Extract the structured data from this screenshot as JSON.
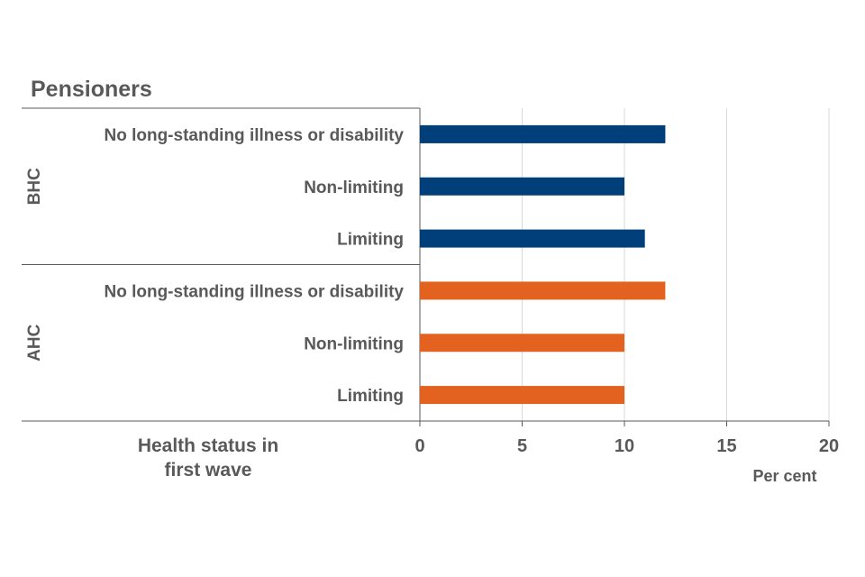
{
  "chart_data": {
    "type": "bar",
    "orientation": "horizontal",
    "title": "Pensioners",
    "category_axis_title": "Health status in first wave",
    "value_axis_title": "Per cent",
    "xlim": [
      0,
      20
    ],
    "ticks": [
      0,
      5,
      10,
      15,
      20
    ],
    "grid": true,
    "groups": [
      {
        "name": "BHC",
        "color": "#003f7a",
        "categories": [
          "No long-standing illness or disability",
          "Non-limiting",
          "Limiting"
        ],
        "values": [
          12,
          10,
          11
        ]
      },
      {
        "name": "AHC",
        "color": "#e3621f",
        "categories": [
          "No long-standing illness or disability",
          "Non-limiting",
          "Limiting"
        ],
        "values": [
          12,
          10,
          10
        ]
      }
    ]
  }
}
